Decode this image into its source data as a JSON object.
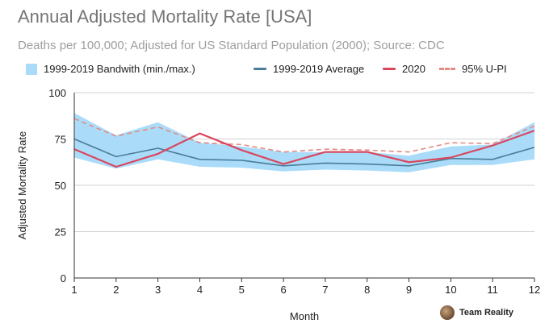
{
  "chart_data": {
    "type": "line",
    "title": "Annual Adjusted Mortality Rate [USA]",
    "subtitle": "Deaths per 100,000; Adjusted for US Standard Population (2000); Source: CDC",
    "xlabel": "Month",
    "ylabel": "Adjusted Mortality Rate",
    "x": [
      1,
      2,
      3,
      4,
      5,
      6,
      7,
      8,
      9,
      10,
      11,
      12
    ],
    "ylim": [
      0,
      100
    ],
    "yticks": [
      0,
      25,
      50,
      75,
      100
    ],
    "grid": "horizontal",
    "legend_position": "top",
    "band": {
      "name": "1999-2019 Bandwith (min./max.)",
      "color": "#aadcfa",
      "min": [
        65,
        59,
        64,
        60,
        59.5,
        57.5,
        58.5,
        58,
        57,
        61,
        61,
        64
      ],
      "max": [
        89,
        77,
        84,
        73,
        71,
        68,
        68,
        68,
        66,
        71,
        72,
        84
      ]
    },
    "series": [
      {
        "name": "1999-2019 Average",
        "color": "#4a7d98",
        "style": "solid",
        "values": [
          75,
          65.5,
          70,
          64,
          63.5,
          60.5,
          62,
          61.5,
          60.5,
          64.5,
          64,
          70.5
        ]
      },
      {
        "name": "2020",
        "color": "#d9475f",
        "style": "solid",
        "values": [
          69.5,
          60,
          67,
          78,
          69,
          61.5,
          68,
          68,
          62.5,
          65,
          71.5,
          79.5
        ]
      },
      {
        "name": "95% U-PI",
        "color": "#e58a82",
        "style": "dashed",
        "values": [
          86,
          76.5,
          81.5,
          73,
          72,
          68,
          69.5,
          69,
          68,
          73,
          72.5,
          82
        ]
      }
    ]
  },
  "watermark": {
    "text": "Team Reality"
  }
}
